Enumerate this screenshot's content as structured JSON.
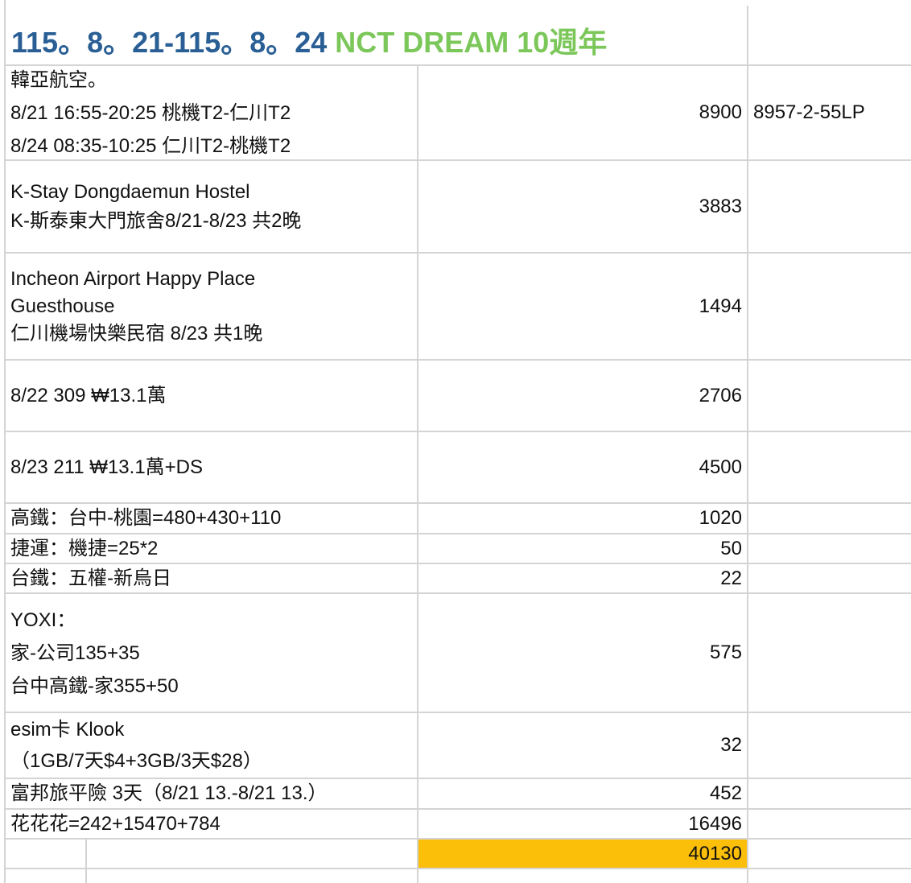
{
  "title": {
    "main": "115。8。21-115。8。24",
    "highlight": "NCT DREAM 10週年"
  },
  "rows": [
    {
      "lines": [
        "韓亞航空。",
        "8/21 16:55-20:25 桃機T2-仁川T2",
        "8/24 08:35-10:25 仁川T2-桃機T2"
      ],
      "amount": 8900,
      "note": "8957-2-55LP"
    },
    {
      "lines": [
        "K-Stay Dongdaemun Hostel",
        "K-斯泰東大門旅舍8/21-8/23 共2晚"
      ],
      "amount": 3883
    },
    {
      "lines": [
        "Incheon Airport Happy Place",
        "Guesthouse",
        "仁川機場快樂民宿 8/23 共1晚"
      ],
      "amount": 1494
    },
    {
      "lines": [
        "8/22 309  ₩13.1萬"
      ],
      "amount": 2706
    },
    {
      "lines": [
        "8/23 211  ₩13.1萬+DS"
      ],
      "amount": 4500
    },
    {
      "lines": [
        "高鐵：台中-桃園=480+430+110"
      ],
      "amount": 1020
    },
    {
      "lines": [
        "捷運：機捷=25*2"
      ],
      "amount": 50
    },
    {
      "lines": [
        "台鐵：五權-新烏日"
      ],
      "amount": 22
    },
    {
      "lines": [
        "YOXI：",
        "家-公司135+35",
        "台中高鐵-家355+50"
      ],
      "amount": 575
    },
    {
      "lines": [
        "esim卡  Klook",
        "（1GB/7天$4+3GB/3天$28）"
      ],
      "amount": 32
    },
    {
      "lines": [
        "富邦旅平險 3天（8/21 13.-8/21 13.）"
      ],
      "amount": 452
    },
    {
      "lines": [
        "花花花=242+15470+784"
      ],
      "amount": 16496
    }
  ],
  "total": 40130
}
